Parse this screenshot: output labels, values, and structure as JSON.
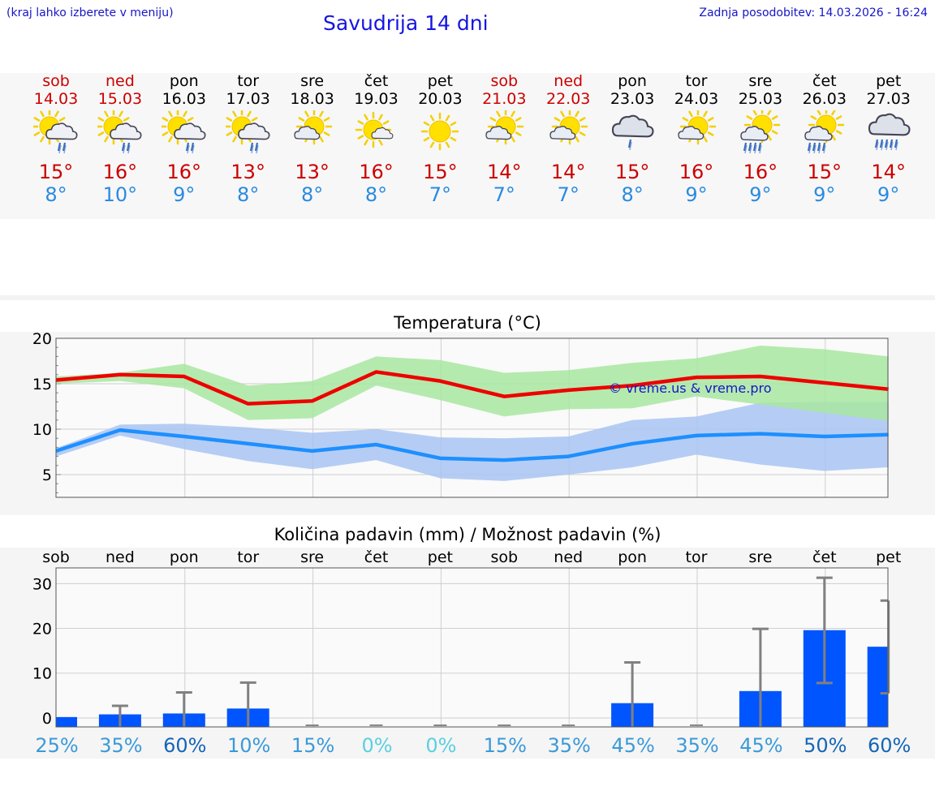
{
  "header": {
    "note": "(kraj lahko izberete v meniju)",
    "title": "Savudrija 14 dni",
    "updated": "Zadnja posodobitev: 14.03.2026 - 16:24"
  },
  "days": [
    {
      "name": "sob",
      "date": "14.03",
      "max": "15°",
      "min": "8°",
      "weekend": true,
      "icon": "sun-cloud-rain-icon"
    },
    {
      "name": "ned",
      "date": "15.03",
      "max": "16°",
      "min": "10°",
      "weekend": true,
      "icon": "sun-cloud-rain-icon"
    },
    {
      "name": "pon",
      "date": "16.03",
      "max": "16°",
      "min": "9°",
      "weekend": false,
      "icon": "sun-cloud-rain-icon"
    },
    {
      "name": "tor",
      "date": "17.03",
      "max": "13°",
      "min": "8°",
      "weekend": false,
      "icon": "sun-cloud-rain-icon"
    },
    {
      "name": "sre",
      "date": "18.03",
      "max": "13°",
      "min": "8°",
      "weekend": false,
      "icon": "sun-cloud-icon"
    },
    {
      "name": "čet",
      "date": "19.03",
      "max": "16°",
      "min": "8°",
      "weekend": false,
      "icon": "sun-small-cloud-icon"
    },
    {
      "name": "pet",
      "date": "20.03",
      "max": "15°",
      "min": "7°",
      "weekend": false,
      "icon": "sun-icon"
    },
    {
      "name": "sob",
      "date": "21.03",
      "max": "14°",
      "min": "7°",
      "weekend": true,
      "icon": "sun-cloud-icon"
    },
    {
      "name": "ned",
      "date": "22.03",
      "max": "14°",
      "min": "7°",
      "weekend": true,
      "icon": "sun-cloud-icon"
    },
    {
      "name": "pon",
      "date": "23.03",
      "max": "15°",
      "min": "8°",
      "weekend": false,
      "icon": "cloud-rain-icon"
    },
    {
      "name": "tor",
      "date": "24.03",
      "max": "16°",
      "min": "9°",
      "weekend": false,
      "icon": "sun-cloud-icon"
    },
    {
      "name": "sre",
      "date": "25.03",
      "max": "16°",
      "min": "9°",
      "weekend": false,
      "icon": "sun-cloud-heavy-rain-icon"
    },
    {
      "name": "čet",
      "date": "26.03",
      "max": "15°",
      "min": "9°",
      "weekend": false,
      "icon": "sun-cloud-heavy-rain-icon"
    },
    {
      "name": "pet",
      "date": "27.03",
      "max": "14°",
      "min": "9°",
      "weekend": false,
      "icon": "cloud-heavy-rain-icon"
    }
  ],
  "chart_data": [
    {
      "type": "line",
      "title": "Temperatura (°C)",
      "watermark": "© vreme.us & vreme.pro",
      "ylim": [
        2.5,
        20
      ],
      "yticks": [
        5,
        10,
        15,
        20
      ],
      "grid": true,
      "series": [
        {
          "name": "max",
          "color": "#ee0000",
          "values": [
            15.4,
            16.0,
            15.8,
            12.8,
            13.1,
            16.3,
            15.3,
            13.6,
            14.3,
            14.8,
            15.7,
            15.8,
            15.1,
            14.4
          ]
        },
        {
          "name": "max-range",
          "color": "#a8e6a0",
          "low": [
            15.0,
            15.3,
            14.5,
            11.0,
            11.2,
            14.8,
            13.2,
            11.4,
            12.2,
            12.3,
            13.6,
            12.7,
            11.8,
            10.9
          ],
          "high": [
            15.8,
            16.2,
            17.2,
            14.8,
            15.3,
            18.0,
            17.6,
            16.2,
            16.5,
            17.3,
            17.8,
            19.2,
            18.8,
            18.0
          ]
        },
        {
          "name": "min",
          "color": "#1e8fff",
          "values": [
            7.6,
            9.9,
            9.2,
            8.4,
            7.6,
            8.3,
            6.8,
            6.6,
            7.0,
            8.4,
            9.3,
            9.5,
            9.2,
            9.4
          ]
        },
        {
          "name": "min-range",
          "color": "#a8c4f2",
          "low": [
            7.0,
            9.3,
            7.8,
            6.5,
            5.6,
            6.6,
            4.6,
            4.3,
            5.0,
            5.8,
            7.2,
            6.1,
            5.4,
            5.8
          ],
          "high": [
            7.9,
            10.5,
            10.6,
            10.2,
            9.6,
            10.0,
            9.1,
            9.0,
            9.2,
            11.0,
            11.4,
            12.9,
            13.0,
            13.0
          ]
        }
      ]
    },
    {
      "type": "bar",
      "title": "Količina padavin (mm) / Možnost padavin (%)",
      "categories": [
        "sob",
        "ned",
        "pon",
        "tor",
        "sre",
        "čet",
        "pet",
        "sob",
        "ned",
        "pon",
        "tor",
        "sre",
        "čet",
        "pet"
      ],
      "values": [
        0.2,
        0.8,
        1.0,
        2.1,
        0,
        0,
        0,
        0,
        0,
        3.3,
        0,
        6.0,
        19.6,
        15.9
      ],
      "error_low": [
        0,
        0,
        0,
        0,
        0,
        0,
        0,
        0,
        0,
        0,
        0,
        0,
        7.8,
        5.5
      ],
      "error_high": [
        0,
        2.7,
        5.7,
        7.9,
        0,
        0,
        0,
        0,
        0,
        12.4,
        0,
        19.9,
        31.3,
        26.2
      ],
      "ylim": [
        -2,
        33.5
      ],
      "yticks": [
        0,
        10,
        20,
        30
      ],
      "probability": [
        "25%",
        "35%",
        "60%",
        "10%",
        "15%",
        "0%",
        "0%",
        "15%",
        "35%",
        "45%",
        "35%",
        "45%",
        "50%",
        "60%"
      ],
      "probability_colors": [
        "#3a9ad8",
        "#3a9ad8",
        "#1565b8",
        "#3a9ad8",
        "#3a9ad8",
        "#5ad0e0",
        "#5ad0e0",
        "#3a9ad8",
        "#3a9ad8",
        "#3a9ad8",
        "#3a9ad8",
        "#3a9ad8",
        "#1565b8",
        "#1565b8"
      ],
      "bar_color": "#0055ff",
      "error_color": "#808080"
    }
  ]
}
